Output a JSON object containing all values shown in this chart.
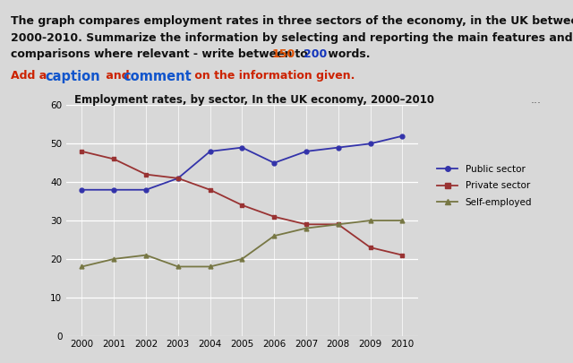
{
  "title": "Employment rates, by sector, In the UK economy, 2000–2010",
  "years": [
    2000,
    2001,
    2002,
    2003,
    2004,
    2005,
    2006,
    2007,
    2008,
    2009,
    2010
  ],
  "public_sector": [
    38,
    38,
    38,
    41,
    48,
    49,
    45,
    48,
    49,
    50,
    52
  ],
  "private_sector": [
    48,
    46,
    42,
    41,
    38,
    34,
    31,
    29,
    29,
    23,
    21
  ],
  "self_employed": [
    18,
    20,
    21,
    18,
    18,
    20,
    26,
    28,
    29,
    30,
    30
  ],
  "public_color": "#3333aa",
  "private_color": "#993333",
  "self_color": "#777744",
  "ylim": [
    0,
    60
  ],
  "yticks": [
    0,
    10,
    20,
    30,
    40,
    50,
    60
  ],
  "bg_color": "#d8d8d8",
  "dots_text": "...",
  "title_fontsize": 8.5
}
